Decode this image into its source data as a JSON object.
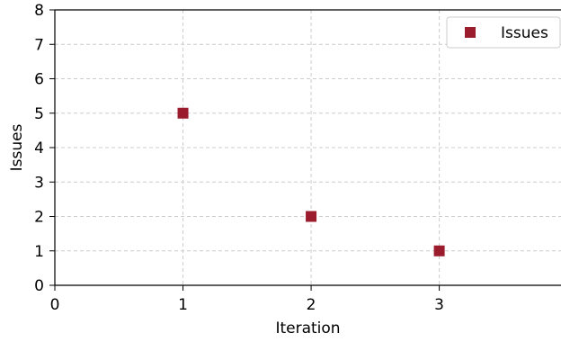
{
  "chart_data": {
    "type": "scatter",
    "title": "",
    "xlabel": "Iteration",
    "ylabel": "Issues",
    "xlim": [
      0,
      3.95
    ],
    "ylim": [
      0,
      8
    ],
    "x_ticks": [
      0,
      1,
      2,
      3
    ],
    "y_ticks": [
      0,
      1,
      2,
      3,
      4,
      5,
      6,
      7,
      8
    ],
    "grid": true,
    "grid_style": "dashed",
    "legend_position": "top-right",
    "marker": "square",
    "series": [
      {
        "name": "Issues",
        "color": "#9b1c2c",
        "x": [
          1,
          2,
          3
        ],
        "y": [
          5,
          2,
          1
        ]
      }
    ]
  }
}
